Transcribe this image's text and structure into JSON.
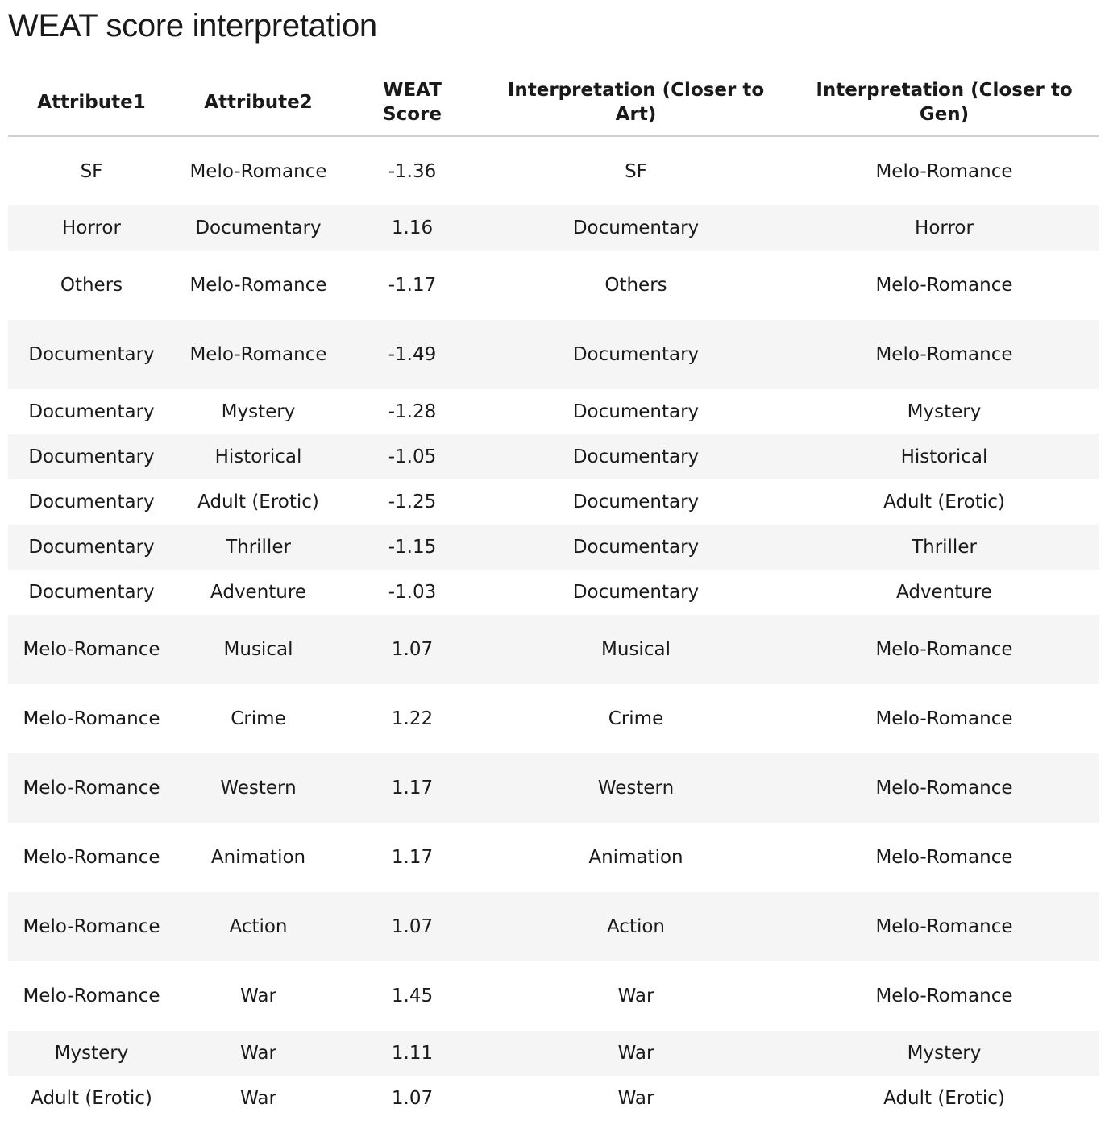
{
  "page": {
    "title": "WEAT score interpretation"
  },
  "table": {
    "columns": [
      "Attribute1",
      "Attribute2",
      "WEAT Score",
      "Interpretation (Closer to Art)",
      "Interpretation (Closer to Gen)"
    ],
    "rows": [
      [
        "SF",
        "Melo-Romance",
        "-1.36",
        "SF",
        "Melo-Romance"
      ],
      [
        "Horror",
        "Documentary",
        "1.16",
        "Documentary",
        "Horror"
      ],
      [
        "Others",
        "Melo-Romance",
        "-1.17",
        "Others",
        "Melo-Romance"
      ],
      [
        "Documentary",
        "Melo-Romance",
        "-1.49",
        "Documentary",
        "Melo-Romance"
      ],
      [
        "Documentary",
        "Mystery",
        "-1.28",
        "Documentary",
        "Mystery"
      ],
      [
        "Documentary",
        "Historical",
        "-1.05",
        "Documentary",
        "Historical"
      ],
      [
        "Documentary",
        "Adult (Erotic)",
        "-1.25",
        "Documentary",
        "Adult (Erotic)"
      ],
      [
        "Documentary",
        "Thriller",
        "-1.15",
        "Documentary",
        "Thriller"
      ],
      [
        "Documentary",
        "Adventure",
        "-1.03",
        "Documentary",
        "Adventure"
      ],
      [
        "Melo-Romance",
        "Musical",
        "1.07",
        "Musical",
        "Melo-Romance"
      ],
      [
        "Melo-Romance",
        "Crime",
        "1.22",
        "Crime",
        "Melo-Romance"
      ],
      [
        "Melo-Romance",
        "Western",
        "1.17",
        "Western",
        "Melo-Romance"
      ],
      [
        "Melo-Romance",
        "Animation",
        "1.17",
        "Animation",
        "Melo-Romance"
      ],
      [
        "Melo-Romance",
        "Action",
        "1.07",
        "Action",
        "Melo-Romance"
      ],
      [
        "Melo-Romance",
        "War",
        "1.45",
        "War",
        "Melo-Romance"
      ],
      [
        "Mystery",
        "War",
        "1.11",
        "War",
        "Mystery"
      ],
      [
        "Adult (Erotic)",
        "War",
        "1.07",
        "War",
        "Adult (Erotic)"
      ]
    ]
  }
}
